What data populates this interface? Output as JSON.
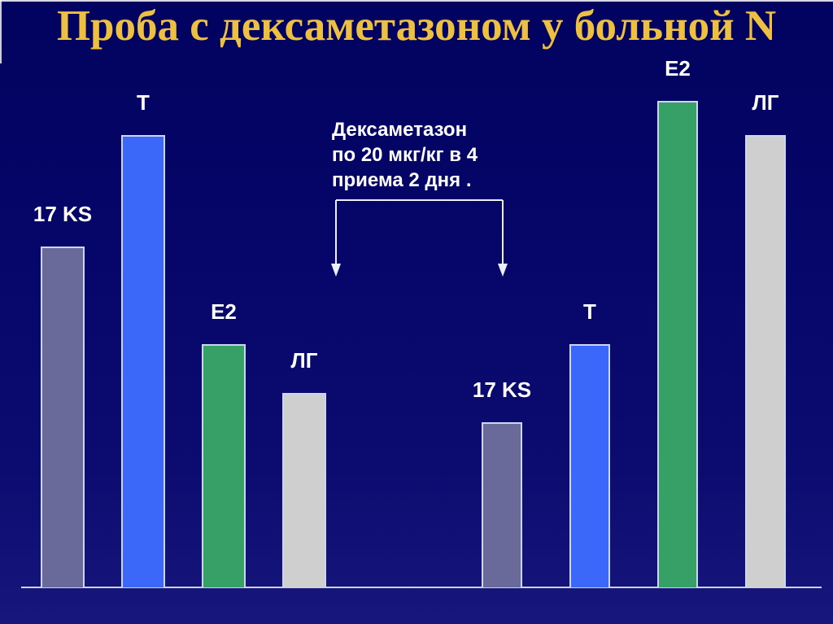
{
  "slide": {
    "title": "Проба с дексаметазоном у больной N",
    "title_color": "#edc042",
    "background_top": "#02025f",
    "background_bottom": "#16167c"
  },
  "annotation": {
    "text": "Дексаметазон\nпо 20 мкг/кг в 4\nприема 2 дня .",
    "color": "#ffffff"
  },
  "chart_data": {
    "type": "bar",
    "title": "Проба с дексаметазоном у больной N",
    "xlabel": "",
    "ylabel": "",
    "value_scale": "relative units, 100 = tallest bar (no numeric axis shown)",
    "ylim": [
      0,
      100
    ],
    "grid": false,
    "legend": false,
    "baseline_axis": true,
    "annotation": "Дексаметазон по 20 мкг/кг в 4 приема 2 дня .",
    "categories": [
      "17 KS",
      "T",
      "E2",
      "ЛГ"
    ],
    "groups": [
      {
        "position": "left",
        "bars": [
          {
            "label": "17 KS",
            "value": 70,
            "color": "#696a99"
          },
          {
            "label": "T",
            "value": 93,
            "color": "#3b68f9"
          },
          {
            "label": "E2",
            "value": 50,
            "color": "#36a067"
          },
          {
            "label": "ЛГ",
            "value": 40,
            "color": "#cfcfcf"
          }
        ]
      },
      {
        "position": "right",
        "bars": [
          {
            "label": "17 KS",
            "value": 34,
            "color": "#696a99"
          },
          {
            "label": "T",
            "value": 50,
            "color": "#3b68f9"
          },
          {
            "label": "E2",
            "value": 100,
            "color": "#36a067"
          },
          {
            "label": "ЛГ",
            "value": 93,
            "color": "#cfcfcf"
          }
        ]
      }
    ],
    "arrow_color": "#eceef8",
    "axis_color": "#ccd3e2"
  }
}
